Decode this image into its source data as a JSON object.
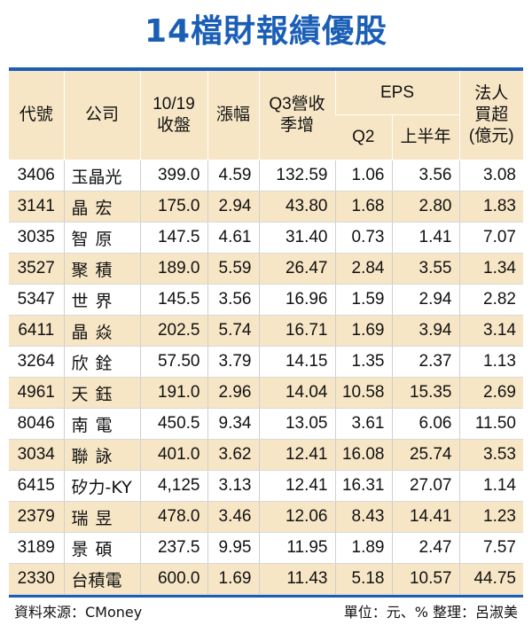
{
  "title": "14檔財報績優股",
  "headers": {
    "code": "代號",
    "company": "公司",
    "close": "10/19\n收盤",
    "change": "漲幅",
    "revenue": "Q3營收\n季增",
    "eps": "EPS",
    "eps_q2": "Q2",
    "eps_h1": "上半年",
    "inst": "法人\n買超\n(億元)"
  },
  "rows": [
    {
      "code": "3406",
      "company": "玉晶光",
      "close": "399.0",
      "change": "4.59",
      "revenue": "132.59",
      "q2": "1.06",
      "h1": "3.56",
      "inst": "3.08"
    },
    {
      "code": "3141",
      "company": "晶宏",
      "close": "175.0",
      "change": "2.94",
      "revenue": "43.80",
      "q2": "1.68",
      "h1": "2.80",
      "inst": "1.83"
    },
    {
      "code": "3035",
      "company": "智原",
      "close": "147.5",
      "change": "4.61",
      "revenue": "31.40",
      "q2": "0.73",
      "h1": "1.41",
      "inst": "7.07"
    },
    {
      "code": "3527",
      "company": "聚積",
      "close": "189.0",
      "change": "5.59",
      "revenue": "26.47",
      "q2": "2.84",
      "h1": "3.55",
      "inst": "1.34"
    },
    {
      "code": "5347",
      "company": "世界",
      "close": "145.5",
      "change": "3.56",
      "revenue": "16.96",
      "q2": "1.59",
      "h1": "2.94",
      "inst": "2.82"
    },
    {
      "code": "6411",
      "company": "晶焱",
      "close": "202.5",
      "change": "5.74",
      "revenue": "16.71",
      "q2": "1.69",
      "h1": "3.94",
      "inst": "3.14"
    },
    {
      "code": "3264",
      "company": "欣銓",
      "close": "57.50",
      "change": "3.79",
      "revenue": "14.15",
      "q2": "1.35",
      "h1": "2.37",
      "inst": "1.13"
    },
    {
      "code": "4961",
      "company": "天鈺",
      "close": "191.0",
      "change": "2.96",
      "revenue": "14.04",
      "q2": "10.58",
      "h1": "15.35",
      "inst": "2.69"
    },
    {
      "code": "8046",
      "company": "南電",
      "close": "450.5",
      "change": "9.34",
      "revenue": "13.05",
      "q2": "3.61",
      "h1": "6.06",
      "inst": "11.50"
    },
    {
      "code": "3034",
      "company": "聯詠",
      "close": "401.0",
      "change": "3.62",
      "revenue": "12.41",
      "q2": "16.08",
      "h1": "25.74",
      "inst": "3.53"
    },
    {
      "code": "6415",
      "company": "矽力-KY",
      "close": "4,125",
      "change": "3.13",
      "revenue": "12.41",
      "q2": "16.31",
      "h1": "27.07",
      "inst": "1.14"
    },
    {
      "code": "2379",
      "company": "瑞昱",
      "close": "478.0",
      "change": "3.46",
      "revenue": "12.06",
      "q2": "8.43",
      "h1": "14.41",
      "inst": "1.23"
    },
    {
      "code": "3189",
      "company": "景碩",
      "close": "237.5",
      "change": "9.95",
      "revenue": "11.95",
      "q2": "1.89",
      "h1": "2.47",
      "inst": "7.57"
    },
    {
      "code": "2330",
      "company": "台積電",
      "close": "600.0",
      "change": "1.69",
      "revenue": "11.43",
      "q2": "5.18",
      "h1": "10.57",
      "inst": "44.75"
    }
  ],
  "footer": {
    "source": "資料來源：CMoney",
    "unit": "單位：元、%  整理：呂淑美"
  }
}
